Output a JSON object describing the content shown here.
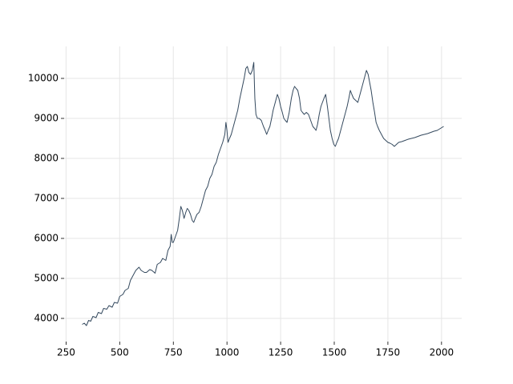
{
  "chart_data": {
    "type": "line",
    "color": "#34495e",
    "grid": true,
    "x": [
      325,
      335,
      345,
      355,
      365,
      375,
      390,
      400,
      415,
      425,
      440,
      450,
      465,
      475,
      490,
      500,
      515,
      525,
      540,
      550,
      560,
      575,
      590,
      600,
      615,
      625,
      640,
      650,
      665,
      675,
      690,
      700,
      715,
      725,
      735,
      740,
      745,
      750,
      760,
      770,
      778,
      785,
      792,
      800,
      808,
      815,
      822,
      830,
      838,
      845,
      852,
      860,
      870,
      880,
      890,
      900,
      910,
      920,
      930,
      940,
      950,
      960,
      970,
      980,
      990,
      995,
      1000,
      1005,
      1012,
      1020,
      1030,
      1040,
      1050,
      1060,
      1070,
      1080,
      1088,
      1095,
      1102,
      1110,
      1118,
      1125,
      1130,
      1135,
      1142,
      1150,
      1160,
      1170,
      1178,
      1185,
      1192,
      1200,
      1208,
      1215,
      1225,
      1235,
      1242,
      1250,
      1258,
      1265,
      1272,
      1280,
      1290,
      1300,
      1308,
      1315,
      1322,
      1330,
      1338,
      1345,
      1352,
      1360,
      1370,
      1380,
      1390,
      1400,
      1408,
      1415,
      1422,
      1430,
      1438,
      1445,
      1452,
      1460,
      1468,
      1475,
      1482,
      1490,
      1498,
      1505,
      1512,
      1520,
      1530,
      1540,
      1550,
      1560,
      1568,
      1575,
      1582,
      1590,
      1600,
      1610,
      1620,
      1630,
      1640,
      1650,
      1658,
      1665,
      1672,
      1680,
      1688,
      1695,
      1702,
      1710,
      1720,
      1730,
      1740,
      1750,
      1760,
      1770,
      1780,
      1790,
      1800,
      1815,
      1830,
      1845,
      1860,
      1875,
      1890,
      1905,
      1920,
      1935,
      1950,
      1965,
      1980,
      1995,
      2010
    ],
    "values": [
      3850,
      3880,
      3820,
      3950,
      3930,
      4050,
      4020,
      4150,
      4120,
      4250,
      4230,
      4320,
      4280,
      4400,
      4380,
      4550,
      4600,
      4700,
      4750,
      4950,
      5050,
      5200,
      5280,
      5200,
      5150,
      5150,
      5220,
      5200,
      5130,
      5350,
      5400,
      5500,
      5450,
      5700,
      5800,
      6100,
      5900,
      5900,
      6050,
      6200,
      6500,
      6800,
      6700,
      6500,
      6650,
      6750,
      6700,
      6600,
      6450,
      6400,
      6500,
      6600,
      6650,
      6800,
      7000,
      7200,
      7300,
      7500,
      7600,
      7800,
      7900,
      8100,
      8250,
      8400,
      8600,
      8900,
      8700,
      8400,
      8500,
      8600,
      8800,
      9000,
      9200,
      9500,
      9750,
      10000,
      10250,
      10300,
      10150,
      10100,
      10200,
      10400,
      9500,
      9100,
      9000,
      9000,
      8950,
      8800,
      8700,
      8600,
      8700,
      8800,
      9000,
      9200,
      9400,
      9600,
      9500,
      9300,
      9150,
      9000,
      8950,
      8900,
      9150,
      9500,
      9700,
      9800,
      9750,
      9700,
      9500,
      9200,
      9150,
      9100,
      9150,
      9100,
      8950,
      8800,
      8750,
      8700,
      8850,
      9100,
      9300,
      9400,
      9500,
      9600,
      9300,
      9000,
      8700,
      8500,
      8350,
      8300,
      8400,
      8500,
      8700,
      8900,
      9100,
      9300,
      9500,
      9700,
      9600,
      9500,
      9450,
      9400,
      9600,
      9800,
      10000,
      10200,
      10100,
      9900,
      9700,
      9400,
      9150,
      8900,
      8800,
      8700,
      8600,
      8500,
      8450,
      8400,
      8380,
      8350,
      8300,
      8350,
      8400,
      8420,
      8450,
      8480,
      8500,
      8520,
      8550,
      8580,
      8600,
      8620,
      8650,
      8680,
      8700,
      8750,
      8800
    ],
    "xlim": [
      241,
      2094
    ],
    "ylim": [
      3420,
      10800
    ],
    "xticks": [
      250,
      500,
      750,
      1000,
      1250,
      1500,
      1750,
      2000
    ],
    "yticks": [
      4000,
      5000,
      6000,
      7000,
      8000,
      9000,
      10000
    ]
  }
}
